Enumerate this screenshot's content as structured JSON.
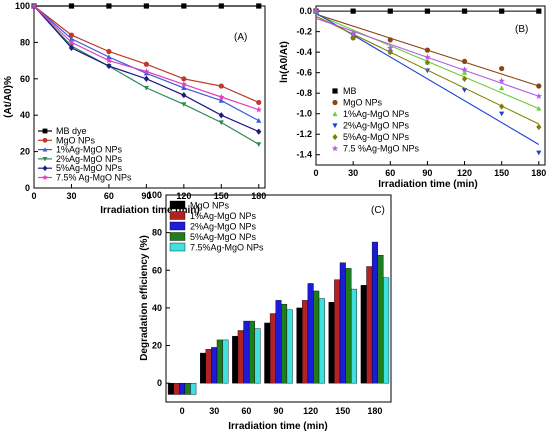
{
  "chart_data": [
    {
      "type": "line",
      "panel_label": "(A)",
      "xlabel": "Irradiation time (min)",
      "ylabel": "(At/A0)%",
      "x": [
        0,
        30,
        60,
        90,
        120,
        150,
        180
      ],
      "xlim": [
        0,
        185
      ],
      "ylim": [
        0,
        100
      ],
      "x_ticks": [
        0,
        30,
        60,
        90,
        120,
        150,
        180
      ],
      "y_ticks": [
        0,
        20,
        40,
        60,
        80,
        100
      ],
      "legend_position": "bottom-left",
      "series": [
        {
          "name": "MB dye",
          "color": "#000000",
          "marker": "square",
          "values": [
            100,
            100,
            100,
            100,
            100,
            100,
            100
          ]
        },
        {
          "name": "MgO NPs",
          "color": "#c0392b",
          "marker": "circle",
          "values": [
            100,
            84,
            75,
            68,
            60,
            56,
            47
          ]
        },
        {
          "name": "1%Ag-MgO NPs",
          "color": "#3b5bdb",
          "marker": "triangle-up",
          "values": [
            100,
            82,
            72,
            63,
            55,
            48,
            37
          ]
        },
        {
          "name": "2%Ag-MgO NPs",
          "color": "#2e8b57",
          "marker": "triangle-down",
          "values": [
            100,
            78,
            67,
            55,
            46,
            36,
            24
          ]
        },
        {
          "name": "5%Ag-MgO NPs",
          "color": "#1a1a80",
          "marker": "diamond",
          "values": [
            100,
            77,
            67,
            60,
            51,
            40,
            31
          ]
        },
        {
          "name": "7.5% Ag-MgO NPs",
          "color": "#e040c0",
          "marker": "star",
          "values": [
            100,
            80,
            70,
            64,
            57,
            50,
            43
          ]
        }
      ]
    },
    {
      "type": "scatter",
      "panel_label": "(B)",
      "xlabel": "Irradiation time (min)",
      "ylabel": "ln(A0/At)",
      "x": [
        0,
        30,
        60,
        90,
        120,
        150,
        180
      ],
      "xlim": [
        0,
        185
      ],
      "ylim": [
        -1.5,
        0.05
      ],
      "x_ticks": [
        0,
        30,
        60,
        90,
        120,
        150,
        180
      ],
      "y_ticks": [
        0.0,
        -0.2,
        -0.4,
        -0.6,
        -0.8,
        -1.0,
        -1.2,
        -1.4
      ],
      "legend_position": "bottom-left",
      "series": [
        {
          "name": "MB",
          "color": "#000000",
          "marker": "square",
          "values": [
            0,
            0,
            0,
            0,
            0,
            0,
            0
          ],
          "fit": [
            0,
            0
          ]
        },
        {
          "name": "MgO NPs",
          "color": "#8b4513",
          "marker": "circle",
          "values": [
            0,
            -0.26,
            -0.28,
            -0.38,
            -0.49,
            -0.56,
            -0.73
          ],
          "fit": [
            -0.03,
            -0.73
          ]
        },
        {
          "name": "1%Ag-MgO NPs",
          "color": "#6ecb3c",
          "marker": "triangle-up",
          "values": [
            0,
            -0.2,
            -0.4,
            -0.5,
            -0.6,
            -0.75,
            -0.95
          ],
          "fit": [
            -0.03,
            -0.95
          ]
        },
        {
          "name": "2%Ag-MgO NPs",
          "color": "#1a3fd6",
          "marker": "triangle-down",
          "values": [
            0,
            -0.24,
            -0.4,
            -0.58,
            -0.77,
            -1.0,
            -1.38
          ],
          "fit": [
            -0.02,
            -1.3
          ]
        },
        {
          "name": "5%Ag-MgO NPs",
          "color": "#808000",
          "marker": "diamond",
          "values": [
            0,
            -0.26,
            -0.4,
            -0.5,
            -0.66,
            -0.93,
            -1.13
          ],
          "fit": [
            -0.05,
            -1.1
          ]
        },
        {
          "name": "7.5 %Ag-MgO NPs",
          "color": "#b05ce6",
          "marker": "star",
          "values": [
            0,
            -0.22,
            -0.36,
            -0.45,
            -0.57,
            -0.68,
            -0.83
          ],
          "fit": [
            -0.07,
            -0.83
          ]
        }
      ]
    },
    {
      "type": "bar",
      "panel_label": "(C)",
      "xlabel": "Irradiation time (min)",
      "ylabel": "Degradation efficiency (%)",
      "categories": [
        "0",
        "30",
        "60",
        "90",
        "120",
        "150",
        "180"
      ],
      "ylim": [
        -10,
        100
      ],
      "y_ticks": [
        0,
        20,
        40,
        60,
        80,
        100
      ],
      "legend_position": "top-left",
      "series": [
        {
          "name": "MgO NPs",
          "color": "#000000",
          "values": [
            -6,
            16,
            25,
            32,
            40,
            43,
            52
          ]
        },
        {
          "name": "1%Ag-MgO NPs",
          "color": "#b22222",
          "values": [
            -6,
            18,
            28,
            37,
            44,
            55,
            62
          ]
        },
        {
          "name": "2%Ag-MgO NPs",
          "color": "#1c1cd8",
          "values": [
            -6,
            19,
            33,
            44,
            53,
            64,
            75
          ]
        },
        {
          "name": "5%Ag-MgO NPs",
          "color": "#1e7e1e",
          "values": [
            -6,
            23,
            33,
            42,
            49,
            61,
            68
          ]
        },
        {
          "name": "7.5%Ag-MgO NPs",
          "color": "#40e0e0",
          "values": [
            -6,
            23,
            29,
            39,
            45,
            50,
            56
          ]
        }
      ]
    }
  ]
}
